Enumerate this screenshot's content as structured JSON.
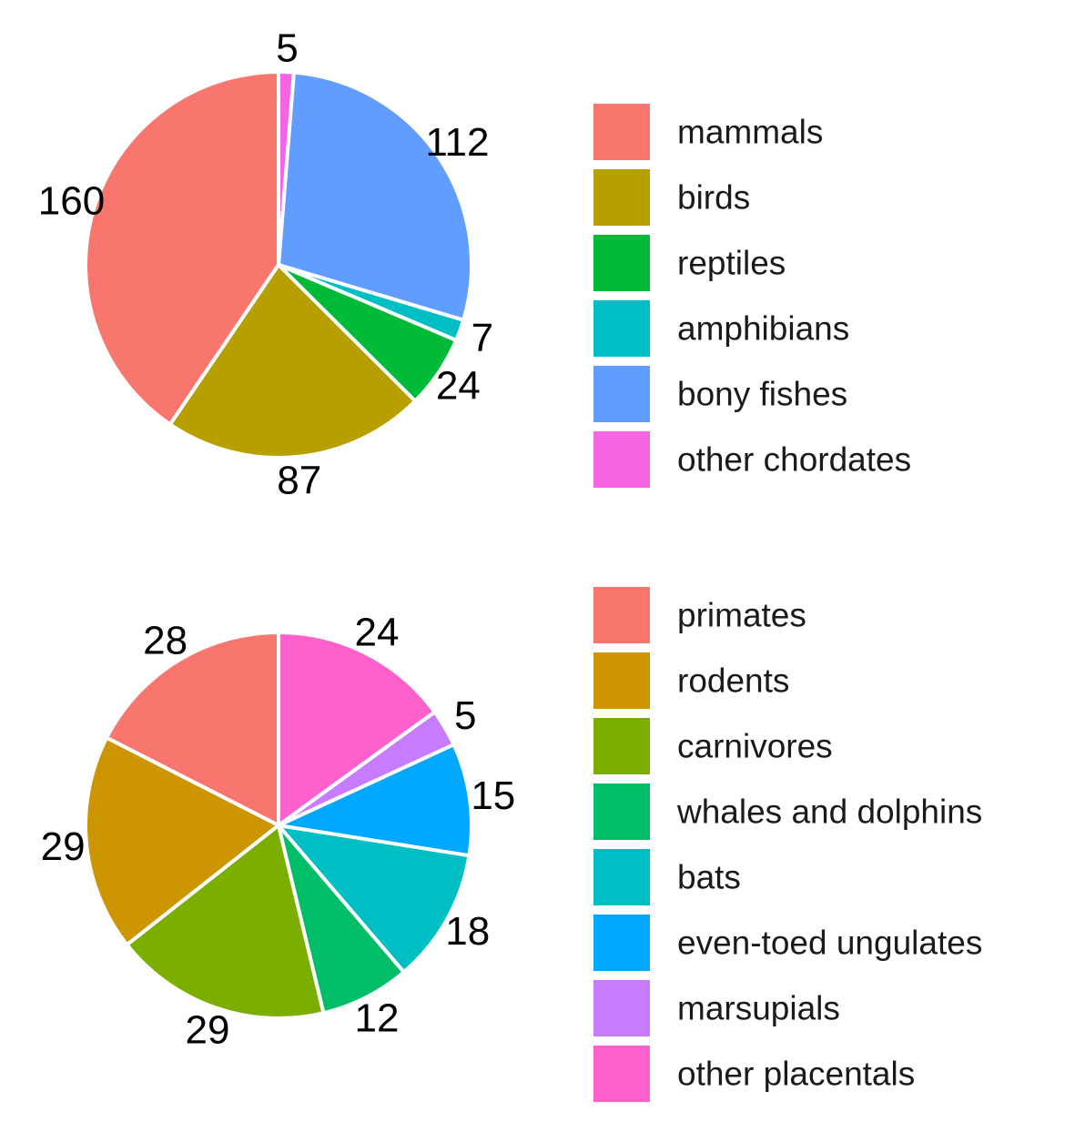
{
  "chart_data": [
    {
      "type": "pie",
      "title": "",
      "start": "top",
      "direction": "counterclockwise",
      "categories": [
        "mammals",
        "birds",
        "reptiles",
        "amphibians",
        "bony fishes",
        "other chordates"
      ],
      "values": [
        160,
        87,
        24,
        7,
        112,
        5
      ],
      "labels": [
        "160",
        "87",
        "24",
        "7",
        "112",
        "5"
      ],
      "colors": [
        "#F8766D",
        "#B79F00",
        "#00BA38",
        "#00BFC4",
        "#619CFF",
        "#F564E3"
      ],
      "legend": {
        "position": "right",
        "entries": [
          "mammals",
          "birds",
          "reptiles",
          "amphibians",
          "bony fishes",
          "other chordates"
        ]
      }
    },
    {
      "type": "pie",
      "title": "",
      "start": "top",
      "direction": "counterclockwise",
      "categories": [
        "primates",
        "rodents",
        "carnivores",
        "whales and dolphins",
        "bats",
        "even-toed ungulates",
        "marsupials",
        "other placentals"
      ],
      "values": [
        28,
        29,
        29,
        12,
        18,
        15,
        5,
        24
      ],
      "labels": [
        "28",
        "29",
        "29",
        "12",
        "18",
        "15",
        "5",
        "24"
      ],
      "colors": [
        "#F8766D",
        "#CD9600",
        "#7CAE00",
        "#00BE67",
        "#00BFC4",
        "#00A9FF",
        "#C77CFF",
        "#FF61CC"
      ],
      "legend": {
        "position": "right",
        "entries": [
          "primates",
          "rodents",
          "carnivores",
          "whales and dolphins",
          "bats",
          "even-toed ungulates",
          "marsupials",
          "other placentals"
        ]
      }
    }
  ]
}
